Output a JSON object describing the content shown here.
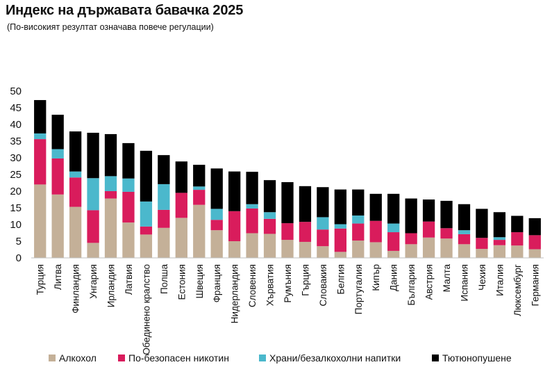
{
  "chart_data": {
    "type": "bar",
    "stacked": true,
    "title": "Индекс на държавата бавачка 2025",
    "subtitle": "(По-високият резултат означава повече регулации)",
    "xlabel": "",
    "ylabel": "",
    "ylim": [
      0,
      50
    ],
    "yticks": [
      0,
      5,
      10,
      15,
      20,
      25,
      30,
      35,
      40,
      45,
      50
    ],
    "grid": false,
    "legend_position": "bottom",
    "categories": [
      "Турция",
      "Литва",
      "Финландия",
      "Унгария",
      "Ирландия",
      "Латвия",
      "Обединено кралство",
      "Полша",
      "Естония",
      "Швеция",
      "Франция",
      "Нидерландия",
      "Словения",
      "Хърватия",
      "Румъния",
      "Гърция",
      "Словакия",
      "Белгия",
      "Португалия",
      "Кипър",
      "Дания",
      "България",
      "Австрия",
      "Малта",
      "Испания",
      "Чехия",
      "Италия",
      "Люксембург",
      "Германия"
    ],
    "series": [
      {
        "name": "Алкохол",
        "color": "#c4b098",
        "values": [
          22.0,
          19.0,
          15.3,
          4.5,
          17.8,
          10.6,
          7.0,
          9.0,
          12.0,
          15.9,
          8.3,
          5.0,
          7.4,
          7.2,
          5.4,
          4.8,
          3.5,
          1.8,
          5.2,
          4.7,
          2.1,
          4.1,
          6.1,
          5.8,
          4.1,
          2.7,
          3.8,
          3.7,
          2.6
        ]
      },
      {
        "name": "По-безопасен никотин",
        "color": "#d91c5c",
        "values": [
          13.6,
          10.8,
          8.8,
          9.8,
          2.2,
          9.2,
          2.4,
          5.4,
          7.5,
          4.5,
          3.1,
          9.0,
          7.4,
          4.5,
          5.0,
          6.0,
          5.0,
          7.0,
          5.1,
          6.4,
          5.6,
          3.3,
          4.8,
          3.1,
          3.0,
          3.3,
          1.6,
          4.0,
          4.2
        ]
      },
      {
        "name": "Храни/безалкохолни напитки",
        "color": "#4bb8cc",
        "values": [
          1.7,
          2.8,
          1.8,
          9.6,
          4.5,
          4.0,
          7.5,
          7.7,
          0.0,
          1.0,
          3.3,
          0.0,
          1.3,
          2.0,
          0.0,
          0.0,
          3.7,
          1.3,
          2.4,
          0.0,
          2.6,
          0.0,
          0.0,
          0.0,
          1.2,
          0.0,
          0.8,
          0.0,
          0.0
        ]
      },
      {
        "name": "Тютюнопушене",
        "color": "#000000",
        "values": [
          10.0,
          10.3,
          12.0,
          13.6,
          12.6,
          10.6,
          15.2,
          8.7,
          9.4,
          6.5,
          12.1,
          11.9,
          9.7,
          9.6,
          12.3,
          10.7,
          9.0,
          10.4,
          7.8,
          8.1,
          8.9,
          10.4,
          6.6,
          8.2,
          7.8,
          8.7,
          7.5,
          4.9,
          5.1
        ]
      }
    ]
  }
}
